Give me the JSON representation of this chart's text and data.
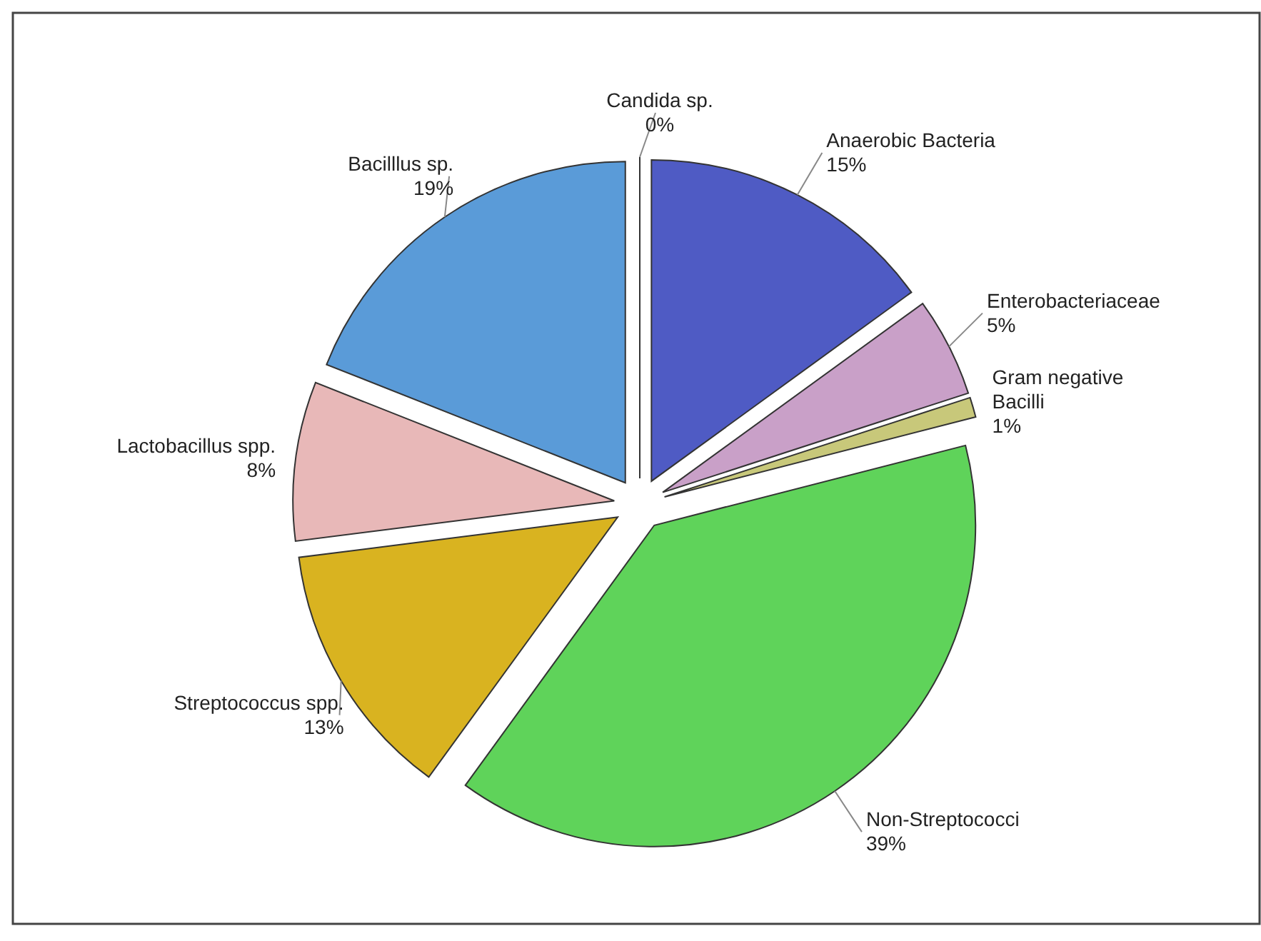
{
  "chart_data": {
    "type": "pie",
    "categories": [
      "Candida sp.",
      "Anaerobic Bacteria",
      "Enterobacteriaceae",
      "Gram negative Bacilli",
      "Non-Streptococci",
      "Streptococcus spp.",
      "Lactobacillus spp.",
      "Bacilllus sp."
    ],
    "values": [
      0,
      15,
      5,
      1,
      39,
      13,
      8,
      19
    ],
    "value_labels": [
      "0%",
      "15%",
      "5%",
      "1%",
      "39%",
      "13%",
      "8%",
      "19%"
    ],
    "colors": [
      "#ffffff",
      "#4f5bc4",
      "#c9a0c8",
      "#c8c87a",
      "#5fd35a",
      "#d9b320",
      "#e8b8b8",
      "#5a9bd8"
    ]
  }
}
